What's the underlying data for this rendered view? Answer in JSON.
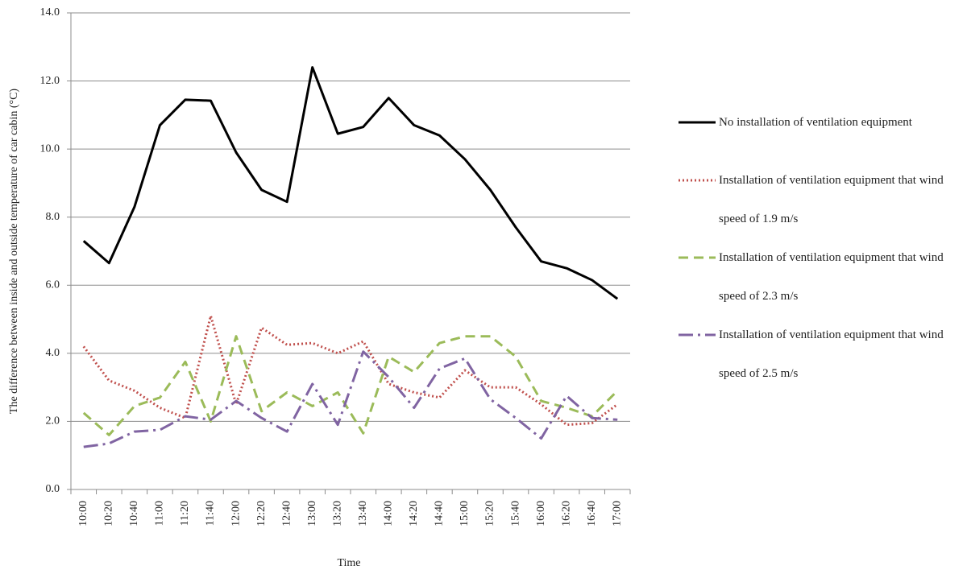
{
  "chart_data": {
    "type": "line",
    "y_label": "The difference between inside and outside temperature of car cabin (°C)",
    "x_label": "Time",
    "categories": [
      "10:00",
      "10:20",
      "10:40",
      "11:00",
      "11:20",
      "11:40",
      "12:00",
      "12:20",
      "12:40",
      "13:00",
      "13:20",
      "13:40",
      "14:00",
      "14:20",
      "14:40",
      "15:00",
      "15:20",
      "15:40",
      "16:00",
      "16:20",
      "16:40",
      "17:00"
    ],
    "series": [
      {
        "name": "No installation of ventilation equipment",
        "color": "#000000",
        "dash": "solid",
        "values": [
          7.3,
          6.65,
          8.3,
          10.7,
          11.45,
          11.42,
          9.9,
          8.8,
          8.45,
          12.4,
          10.45,
          10.65,
          11.5,
          10.7,
          10.4,
          9.7,
          8.8,
          7.7,
          6.7,
          6.5,
          6.15,
          5.6
        ]
      },
      {
        "name": "Installation of ventilation equipment that wind speed of 1.9 m/s",
        "color": "#c0504d",
        "dash": "dotted",
        "values": [
          4.2,
          3.2,
          2.9,
          2.4,
          2.1,
          5.1,
          2.5,
          4.75,
          4.25,
          4.3,
          4.0,
          4.35,
          3.1,
          2.85,
          2.7,
          3.5,
          3.0,
          3.0,
          2.5,
          1.9,
          1.95,
          2.5
        ]
      },
      {
        "name": "Installation of ventilation equipment that wind speed of 2.3 m/s",
        "color": "#9bbb59",
        "dash": "dashed",
        "values": [
          2.25,
          1.6,
          2.45,
          2.7,
          3.75,
          2.0,
          4.5,
          2.3,
          2.85,
          2.45,
          2.85,
          1.65,
          3.9,
          3.45,
          4.3,
          4.5,
          4.5,
          3.9,
          2.6,
          2.4,
          2.15,
          2.9
        ]
      },
      {
        "name": "Installation of ventilation equipment that wind speed of 2.5 m/s",
        "color": "#8064a2",
        "dash": "dashdot",
        "values": [
          1.25,
          1.35,
          1.7,
          1.75,
          2.15,
          2.05,
          2.6,
          2.1,
          1.7,
          3.1,
          1.9,
          4.05,
          3.3,
          2.4,
          3.55,
          3.85,
          2.65,
          2.1,
          1.5,
          2.75,
          2.1,
          2.05
        ]
      }
    ],
    "ylim": [
      0,
      14
    ],
    "yticks": [
      {
        "value": 0,
        "label": "0.0"
      },
      {
        "value": 2,
        "label": "2.0"
      },
      {
        "value": 4,
        "label": "4.0"
      },
      {
        "value": 6,
        "label": "6.0"
      },
      {
        "value": 8,
        "label": "8.0"
      },
      {
        "value": 10,
        "label": "10.0"
      },
      {
        "value": 12,
        "label": "12.0"
      },
      {
        "value": 14,
        "label": "14.0"
      }
    ],
    "grid": true,
    "legend": "right"
  }
}
